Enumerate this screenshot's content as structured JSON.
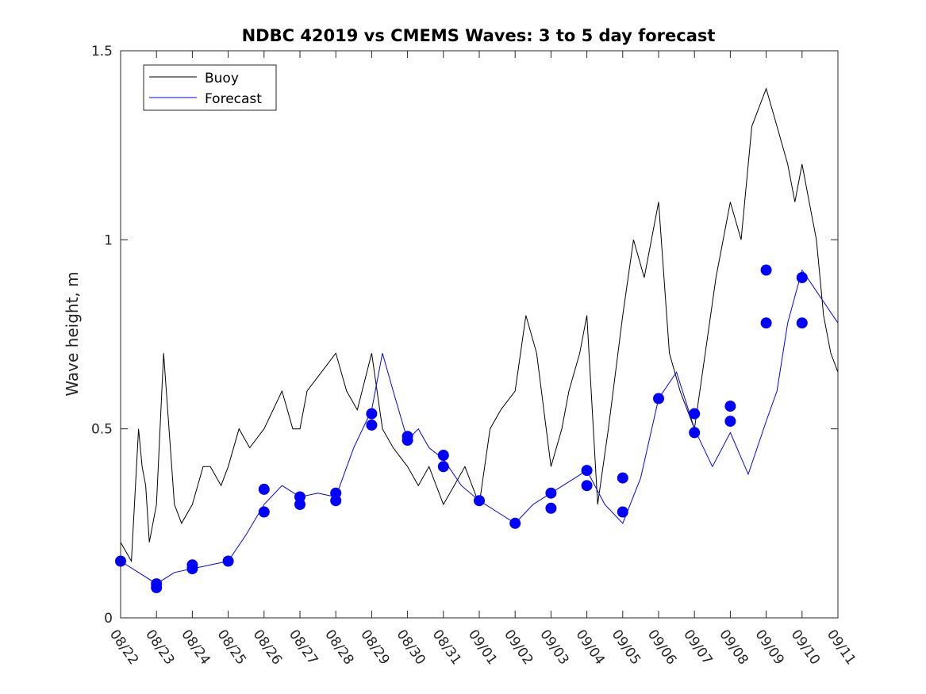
{
  "chart_data": {
    "type": "line",
    "title": "NDBC 42019 vs CMEMS Waves: 3 to 5 day forecast",
    "xlabel": "",
    "ylabel": "Wave height, m",
    "ylim": [
      0,
      1.5
    ],
    "xlim": [
      0,
      20
    ],
    "y_ticks": [
      0,
      0.5,
      1,
      1.5
    ],
    "y_tick_labels": [
      "0",
      "0.5",
      "1",
      "1.5"
    ],
    "x_tick_labels": [
      "08/22",
      "08/23",
      "08/24",
      "08/25",
      "08/26",
      "08/27",
      "08/28",
      "08/29",
      "08/30",
      "08/31",
      "09/01",
      "09/02",
      "09/03",
      "09/04",
      "09/05",
      "09/06",
      "09/07",
      "09/08",
      "09/09",
      "09/10",
      "09/11"
    ],
    "legend": {
      "position": "top-left",
      "entries": [
        {
          "label": "Buoy",
          "color": "#000000"
        },
        {
          "label": "Forecast",
          "color": "#0000ff"
        }
      ]
    },
    "colors": {
      "buoy": "#000000",
      "forecast": "#0000ff",
      "axis": "#262626"
    },
    "series": [
      {
        "name": "Buoy",
        "x": [
          0,
          0.3,
          0.5,
          0.6,
          0.7,
          0.8,
          1.0,
          1.2,
          1.5,
          1.7,
          2.0,
          2.3,
          2.5,
          2.8,
          3.0,
          3.3,
          3.6,
          4.0,
          4.5,
          4.8,
          5.0,
          5.2,
          5.6,
          6.0,
          6.3,
          6.6,
          7.0,
          7.3,
          7.6,
          8.0,
          8.3,
          8.6,
          9.0,
          9.3,
          9.6,
          10.0,
          10.3,
          10.6,
          11.0,
          11.3,
          11.6,
          12.0,
          12.3,
          12.5,
          12.8,
          13.0,
          13.3,
          13.6,
          14.0,
          14.3,
          14.6,
          15.0,
          15.3,
          15.6,
          16.0,
          16.3,
          16.6,
          17.0,
          17.3,
          17.6,
          18.0,
          18.3,
          18.6,
          18.8,
          19.0,
          19.2,
          19.4,
          19.6,
          19.8,
          20.0
        ],
        "values": [
          0.2,
          0.15,
          0.5,
          0.4,
          0.35,
          0.2,
          0.3,
          0.7,
          0.3,
          0.25,
          0.3,
          0.4,
          0.4,
          0.35,
          0.4,
          0.5,
          0.45,
          0.5,
          0.6,
          0.5,
          0.5,
          0.6,
          0.65,
          0.7,
          0.6,
          0.55,
          0.7,
          0.5,
          0.45,
          0.4,
          0.35,
          0.4,
          0.3,
          0.35,
          0.4,
          0.3,
          0.5,
          0.55,
          0.6,
          0.8,
          0.7,
          0.4,
          0.5,
          0.6,
          0.7,
          0.8,
          0.3,
          0.5,
          0.8,
          1.0,
          0.9,
          1.1,
          0.7,
          0.6,
          0.5,
          0.7,
          0.9,
          1.1,
          1.0,
          1.3,
          1.4,
          1.3,
          1.2,
          1.1,
          1.2,
          1.1,
          1.0,
          0.8,
          0.7,
          0.65
        ]
      },
      {
        "name": "Forecast",
        "x": [
          0,
          0.5,
          1.0,
          1.5,
          2.0,
          2.5,
          3.0,
          3.5,
          4.0,
          4.5,
          5.0,
          5.5,
          6.0,
          6.5,
          7.0,
          7.3,
          7.6,
          8.0,
          8.3,
          8.6,
          9.0,
          9.5,
          10.0,
          10.5,
          11.0,
          11.5,
          12.0,
          12.5,
          13.0,
          13.5,
          14.0,
          14.5,
          15.0,
          15.5,
          16.0,
          16.5,
          17.0,
          17.5,
          18.0,
          18.3,
          18.6,
          19.0,
          19.5,
          20.0
        ],
        "values": [
          0.15,
          0.12,
          0.09,
          0.12,
          0.13,
          0.14,
          0.15,
          0.22,
          0.3,
          0.35,
          0.32,
          0.33,
          0.32,
          0.45,
          0.55,
          0.7,
          0.6,
          0.47,
          0.5,
          0.45,
          0.42,
          0.35,
          0.31,
          0.28,
          0.25,
          0.3,
          0.33,
          0.36,
          0.39,
          0.3,
          0.25,
          0.37,
          0.58,
          0.65,
          0.5,
          0.4,
          0.49,
          0.38,
          0.52,
          0.6,
          0.78,
          0.92,
          0.85,
          0.78
        ]
      }
    ],
    "forecast_markers": {
      "x": [
        0,
        1,
        1,
        2,
        2,
        3,
        4,
        4,
        5,
        5,
        6,
        6,
        7,
        7,
        8,
        8,
        9,
        9,
        10,
        11,
        12,
        12,
        13,
        13,
        14,
        14,
        15,
        16,
        16,
        17,
        17,
        18,
        18,
        19,
        19
      ],
      "values": [
        0.15,
        0.08,
        0.09,
        0.14,
        0.13,
        0.15,
        0.34,
        0.28,
        0.32,
        0.3,
        0.33,
        0.31,
        0.54,
        0.51,
        0.48,
        0.47,
        0.43,
        0.4,
        0.31,
        0.25,
        0.33,
        0.29,
        0.39,
        0.35,
        0.37,
        0.28,
        0.58,
        0.54,
        0.49,
        0.56,
        0.52,
        0.92,
        0.78,
        0.9,
        0.78
      ]
    }
  }
}
